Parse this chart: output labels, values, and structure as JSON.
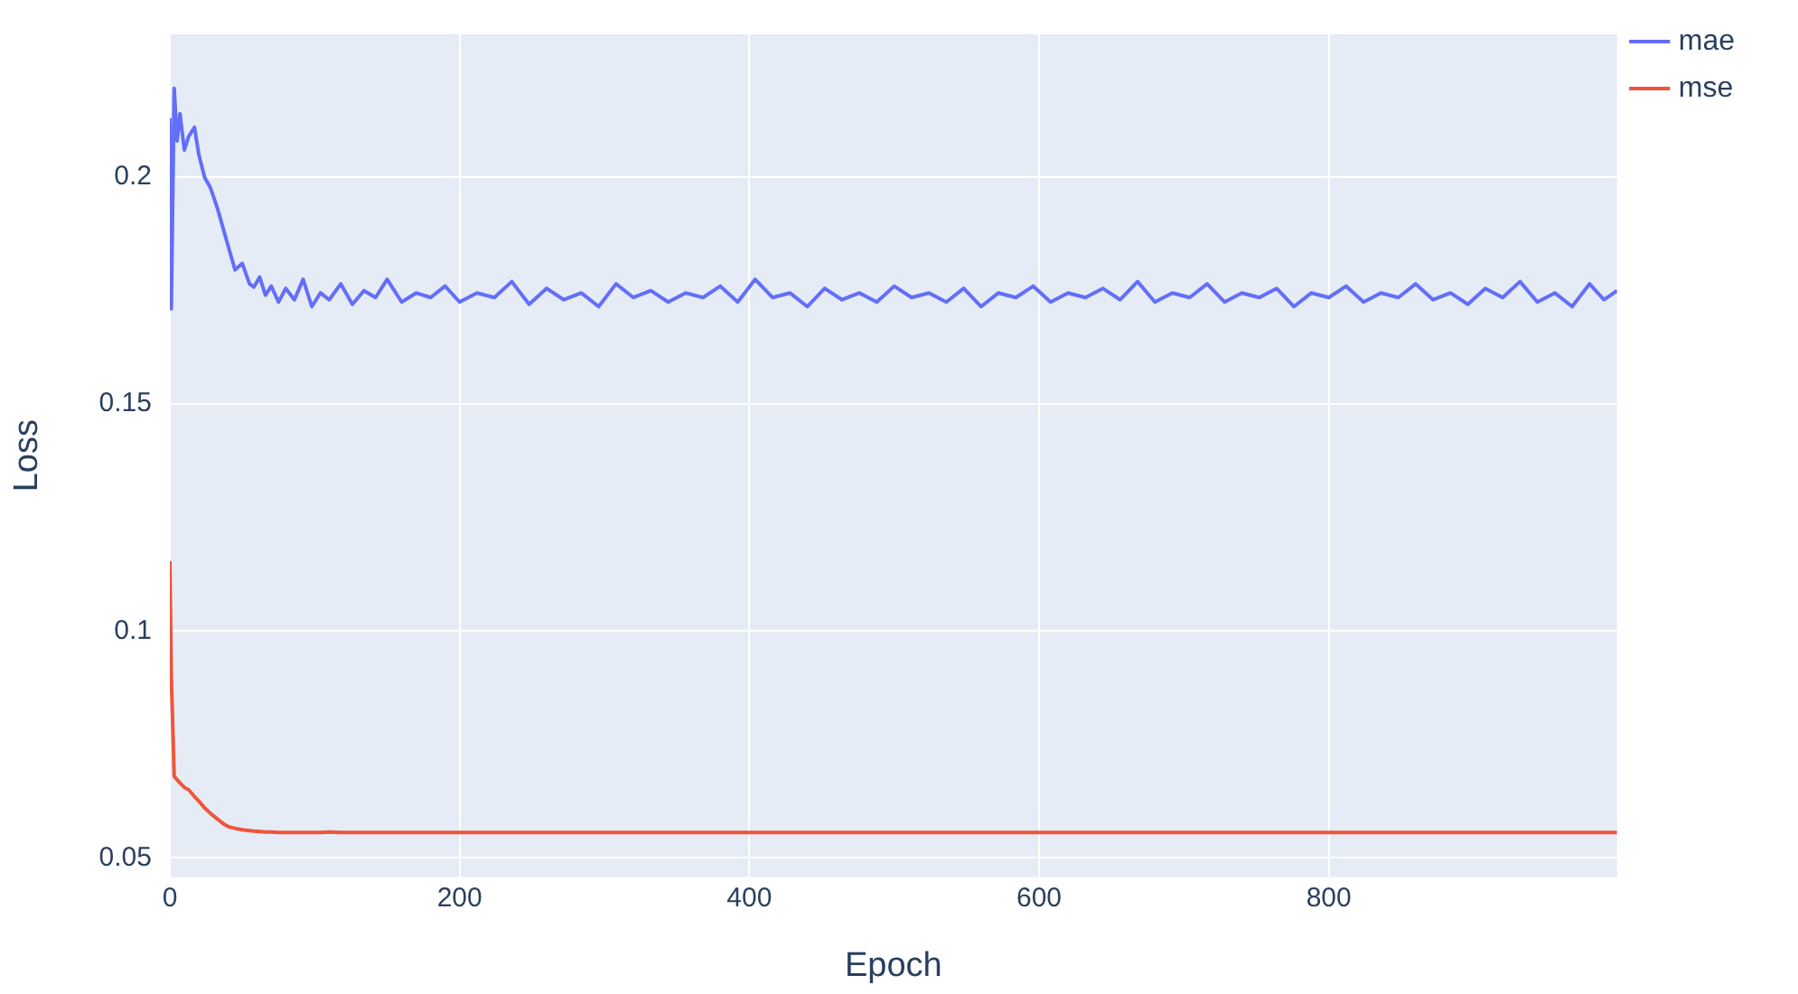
{
  "chart_data": {
    "type": "line",
    "xlabel": "Epoch",
    "ylabel": "Loss",
    "x": [
      0,
      1,
      3,
      5,
      7,
      10,
      13,
      17,
      20,
      24,
      28,
      33,
      37,
      41,
      45,
      50,
      55,
      58,
      62,
      66,
      70,
      75,
      80,
      86,
      92,
      98,
      104,
      110,
      118,
      126,
      134,
      142,
      150,
      160,
      170,
      180,
      190,
      200,
      212,
      224,
      236,
      248,
      260,
      272,
      284,
      296,
      308,
      320,
      332,
      344,
      356,
      368,
      380,
      392,
      404,
      416,
      428,
      440,
      452,
      464,
      476,
      488,
      500,
      512,
      524,
      536,
      548,
      560,
      572,
      584,
      596,
      608,
      620,
      632,
      644,
      656,
      668,
      680,
      692,
      704,
      716,
      728,
      740,
      752,
      764,
      776,
      788,
      800,
      812,
      824,
      836,
      848,
      860,
      872,
      884,
      896,
      908,
      920,
      932,
      944,
      956,
      968,
      980,
      990,
      999
    ],
    "series": [
      {
        "name": "mae",
        "color": "#636efa",
        "values": [
          0.213,
          0.171,
          0.2196,
          0.208,
          0.214,
          0.206,
          0.209,
          0.211,
          0.205,
          0.2,
          0.1977,
          0.193,
          0.1885,
          0.184,
          0.1796,
          0.181,
          0.1765,
          0.1758,
          0.178,
          0.174,
          0.176,
          0.1725,
          0.1755,
          0.173,
          0.1775,
          0.1715,
          0.1745,
          0.173,
          0.1765,
          0.172,
          0.175,
          0.1735,
          0.1775,
          0.1725,
          0.1745,
          0.1735,
          0.176,
          0.1725,
          0.1745,
          0.1735,
          0.177,
          0.172,
          0.1755,
          0.173,
          0.1745,
          0.1715,
          0.1765,
          0.1735,
          0.175,
          0.1725,
          0.1745,
          0.1735,
          0.176,
          0.1725,
          0.1775,
          0.1735,
          0.1745,
          0.1715,
          0.1755,
          0.173,
          0.1745,
          0.1725,
          0.176,
          0.1735,
          0.1745,
          0.1725,
          0.1755,
          0.1715,
          0.1745,
          0.1735,
          0.176,
          0.1725,
          0.1745,
          0.1735,
          0.1755,
          0.173,
          0.177,
          0.1725,
          0.1745,
          0.1735,
          0.1765,
          0.1725,
          0.1745,
          0.1735,
          0.1755,
          0.1715,
          0.1745,
          0.1735,
          0.176,
          0.1725,
          0.1745,
          0.1735,
          0.1765,
          0.173,
          0.1745,
          0.172,
          0.1755,
          0.1735,
          0.177,
          0.1725,
          0.1745,
          0.1715,
          0.1765,
          0.173,
          0.175
        ]
      },
      {
        "name": "mse",
        "color": "#ef553b",
        "values": [
          0.1154,
          0.09,
          0.068,
          0.0672,
          0.0665,
          0.0655,
          0.065,
          0.0635,
          0.0625,
          0.061,
          0.0598,
          0.0585,
          0.0575,
          0.0568,
          0.0565,
          0.0562,
          0.056,
          0.0559,
          0.0558,
          0.0557,
          0.0557,
          0.0556,
          0.0556,
          0.0556,
          0.0556,
          0.0556,
          0.0556,
          0.0557,
          0.0556,
          0.0556,
          0.0556,
          0.0556,
          0.0556,
          0.0556,
          0.0556,
          0.0556,
          0.0556,
          0.0556,
          0.0556,
          0.0556,
          0.0556,
          0.0556,
          0.0556,
          0.0556,
          0.0556,
          0.0556,
          0.0556,
          0.0556,
          0.0556,
          0.0556,
          0.0556,
          0.0556,
          0.0556,
          0.0556,
          0.0556,
          0.0556,
          0.0556,
          0.0556,
          0.0556,
          0.0556,
          0.0556,
          0.0556,
          0.0556,
          0.0556,
          0.0556,
          0.0556,
          0.0556,
          0.0556,
          0.0556,
          0.0556,
          0.0556,
          0.0556,
          0.0556,
          0.0556,
          0.0556,
          0.0556,
          0.0556,
          0.0556,
          0.0556,
          0.0556,
          0.0556,
          0.0556,
          0.0556,
          0.0556,
          0.0556,
          0.0556,
          0.0556,
          0.0556,
          0.0556,
          0.0556,
          0.0556,
          0.0556,
          0.0556,
          0.0556,
          0.0556,
          0.0556,
          0.0556,
          0.0556,
          0.0556,
          0.0556,
          0.0556,
          0.0556,
          0.0556,
          0.0556,
          0.0556
        ]
      }
    ],
    "xlim": [
      0,
      999
    ],
    "xticks": [
      0,
      200,
      400,
      600,
      800
    ],
    "ylim": [
      0.0458,
      0.2315
    ],
    "yticks": [
      0.05,
      0.1,
      0.15,
      0.2
    ],
    "grid": true,
    "legend": "top right",
    "marker": "none",
    "line_style": "solid"
  }
}
